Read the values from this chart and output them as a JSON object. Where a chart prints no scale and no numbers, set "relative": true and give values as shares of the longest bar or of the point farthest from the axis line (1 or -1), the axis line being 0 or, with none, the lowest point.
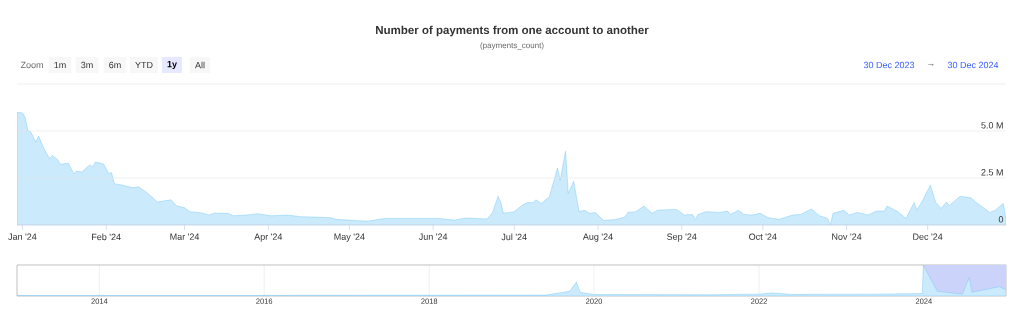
{
  "chart_data": [
    {
      "type": "area",
      "title": "Number of payments from one account to another",
      "subtitle": "(payments_count)",
      "color": "#6ac3f7",
      "grid": "y",
      "marker": "none",
      "line_style": "solid",
      "annotations": [
        "Zoom",
        "1m",
        "3m",
        "6m",
        "YTD",
        "1y",
        "All",
        "30 Dec 2023",
        "→",
        "30 Dec 2024"
      ],
      "xlim": [
        "2023-12-30",
        "2024-12-30"
      ],
      "ylim": [
        0,
        7.5
      ],
      "yticks": [
        0,
        {
          "value": 2.5,
          "label": "2.5 M"
        },
        {
          "value": 5,
          "label": "5.0 M"
        },
        {
          "value": 7.5,
          "label": null
        }
      ],
      "xticks": [
        {
          "value": "2024-01-01",
          "label": "Jan '24"
        },
        {
          "value": "2024-02-01",
          "label": "Feb '24"
        },
        {
          "value": "2024-03-01",
          "label": "Mar '24"
        },
        {
          "value": "2024-04-01",
          "label": "Apr '24"
        },
        {
          "value": "2024-05-01",
          "label": "May '24"
        },
        {
          "value": "2024-06-01",
          "label": "Jun '24"
        },
        {
          "value": "2024-07-01",
          "label": "Jul '24"
        },
        {
          "value": "2024-08-01",
          "label": "Aug '24"
        },
        {
          "value": "2024-09-01",
          "label": "Sep '24"
        },
        {
          "value": "2024-10-01",
          "label": "Oct '24"
        },
        {
          "value": "2024-11-01",
          "label": "Nov '24"
        },
        {
          "value": "2024-12-01",
          "label": "Dec '24"
        }
      ],
      "x": [
        "2023-12-30",
        "2024-01-01",
        "2024-01-02",
        "2024-01-03",
        "2024-01-04",
        "2024-01-06",
        "2024-01-07",
        "2024-01-09",
        "2024-01-11",
        "2024-01-12",
        "2024-01-14",
        "2024-01-15",
        "2024-01-18",
        "2024-01-20",
        "2024-01-21",
        "2024-01-23",
        "2024-01-26",
        "2024-01-27",
        "2024-01-28",
        "2024-01-31",
        "2024-02-02",
        "2024-02-03",
        "2024-02-04",
        "2024-02-07",
        "2024-02-11",
        "2024-02-13",
        "2024-02-16",
        "2024-02-20",
        "2024-02-22",
        "2024-02-25",
        "2024-02-27",
        "2024-03-01",
        "2024-03-03",
        "2024-03-07",
        "2024-03-10",
        "2024-03-12",
        "2024-03-17",
        "2024-03-19",
        "2024-03-24",
        "2024-03-28",
        "2024-04-02",
        "2024-04-08",
        "2024-04-13",
        "2024-04-18",
        "2024-04-24",
        "2024-04-26",
        "2024-05-01",
        "2024-05-04",
        "2024-05-08",
        "2024-05-14",
        "2024-05-25",
        "2024-06-03",
        "2024-06-09",
        "2024-06-13",
        "2024-06-21",
        "2024-06-23",
        "2024-06-25",
        "2024-06-26",
        "2024-06-27",
        "2024-07-01",
        "2024-07-04",
        "2024-07-06",
        "2024-07-08",
        "2024-07-09",
        "2024-07-11",
        "2024-07-14",
        "2024-07-17",
        "2024-07-18",
        "2024-07-20",
        "2024-07-21",
        "2024-07-23",
        "2024-07-25",
        "2024-07-27",
        "2024-07-29",
        "2024-07-31",
        "2024-08-03",
        "2024-08-07",
        "2024-08-11",
        "2024-08-12",
        "2024-08-15",
        "2024-08-18",
        "2024-08-21",
        "2024-08-23",
        "2024-08-30",
        "2024-09-02",
        "2024-09-05",
        "2024-09-06",
        "2024-09-07",
        "2024-09-10",
        "2024-09-15",
        "2024-09-18",
        "2024-09-19",
        "2024-09-22",
        "2024-09-24",
        "2024-09-27",
        "2024-09-30",
        "2024-10-03",
        "2024-10-07",
        "2024-10-09",
        "2024-10-12",
        "2024-10-15",
        "2024-10-19",
        "2024-10-22",
        "2024-10-25",
        "2024-10-26",
        "2024-10-27",
        "2024-10-31",
        "2024-11-02",
        "2024-11-05",
        "2024-11-09",
        "2024-11-12",
        "2024-11-15",
        "2024-11-16",
        "2024-11-20",
        "2024-11-23",
        "2024-11-26",
        "2024-11-27",
        "2024-11-29",
        "2024-12-02",
        "2024-12-04",
        "2024-12-06",
        "2024-12-08",
        "2024-12-09",
        "2024-12-13",
        "2024-12-17",
        "2024-12-19",
        "2024-12-24",
        "2024-12-26",
        "2024-12-29",
        "2024-12-30"
      ],
      "values": [
        6.0,
        5.96,
        5.73,
        5.03,
        4.97,
        4.41,
        4.73,
        4.06,
        3.53,
        3.7,
        3.49,
        3.23,
        3.28,
        2.73,
        2.86,
        2.82,
        3.21,
        3.09,
        3.35,
        3.25,
        2.73,
        2.79,
        2.2,
        2.12,
        1.98,
        2.03,
        1.73,
        1.23,
        1.27,
        1.34,
        1.02,
        0.92,
        0.71,
        0.65,
        0.53,
        0.63,
        0.62,
        0.49,
        0.53,
        0.6,
        0.49,
        0.53,
        0.44,
        0.42,
        0.39,
        0.3,
        0.26,
        0.23,
        0.21,
        0.35,
        0.35,
        0.35,
        0.26,
        0.37,
        0.32,
        0.67,
        1.52,
        1.23,
        0.62,
        0.71,
        1.06,
        1.2,
        1.18,
        1.34,
        1.15,
        1.5,
        3.03,
        2.38,
        3.92,
        1.68,
        2.33,
        0.71,
        0.78,
        0.62,
        0.67,
        0.25,
        0.28,
        0.42,
        0.67,
        0.71,
        1.01,
        0.62,
        0.79,
        0.83,
        0.53,
        0.56,
        0.28,
        0.56,
        0.71,
        0.67,
        0.74,
        0.56,
        0.78,
        0.56,
        0.53,
        0.62,
        0.39,
        0.3,
        0.39,
        0.53,
        0.56,
        0.85,
        0.49,
        0.35,
        0.0,
        0.62,
        0.78,
        0.53,
        0.67,
        0.53,
        0.74,
        0.74,
        1.01,
        0.71,
        0.35,
        1.2,
        0.79,
        1.27,
        2.12,
        1.2,
        0.88,
        1.23,
        1.02,
        1.53,
        1.45,
        1.2,
        0.67,
        0.79,
        1.15,
        0.26
      ]
    },
    {
      "type": "area",
      "relative": true,
      "color": "#6ac3f7",
      "grid": "x",
      "marker": "none",
      "line_style": "solid",
      "xlim": [
        "2013-01-01",
        "2024-12-30"
      ],
      "xticks": [
        {
          "value": "2014-01-01",
          "label": "2014"
        },
        {
          "value": "2016-01-01",
          "label": "2016"
        },
        {
          "value": "2018-01-01",
          "label": "2018"
        },
        {
          "value": "2020-01-01",
          "label": "2020"
        },
        {
          "value": "2022-01-01",
          "label": "2022"
        },
        {
          "value": "2024-01-01",
          "label": "2024"
        }
      ],
      "bands": [
        {
          "axis": "x",
          "from": "2023-12-30",
          "to": "2024-12-30",
          "color": "#ccd3fa"
        }
      ],
      "x": [
        "2013-01-01",
        "2016-01-01",
        "2019-06-01",
        "2019-09-15",
        "2019-10-15",
        "2019-11-01",
        "2020-01-01",
        "2021-06-01",
        "2022-01-01",
        "2022-03-01",
        "2022-06-01",
        "2023-06-01",
        "2023-12-25",
        "2023-12-30",
        "2024-01-31",
        "2024-03-01",
        "2024-06-20",
        "2024-07-20",
        "2024-08-01",
        "2024-11-30",
        "2024-12-30"
      ],
      "values": [
        0.02,
        0.02,
        0.03,
        0.15,
        0.45,
        0.12,
        0.05,
        0.04,
        0.06,
        0.1,
        0.05,
        0.06,
        0.08,
        1.0,
        0.55,
        0.15,
        0.06,
        0.6,
        0.12,
        0.3,
        0.2
      ]
    }
  ]
}
